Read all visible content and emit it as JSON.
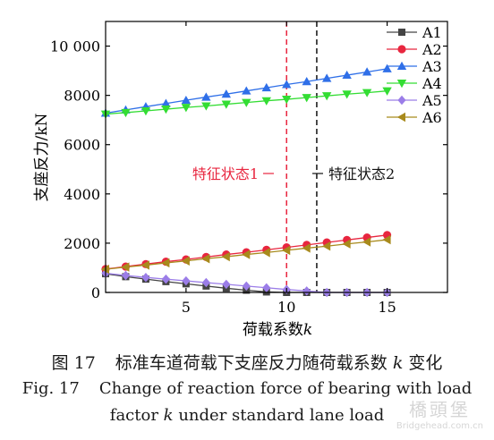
{
  "chart_data": {
    "type": "line",
    "x": [
      1,
      2,
      3,
      4,
      5,
      6,
      7,
      8,
      9,
      10,
      11,
      12,
      13,
      14,
      15
    ],
    "xlim": [
      1,
      18
    ],
    "ylim": [
      0,
      11000
    ],
    "x_ticks": [
      5,
      10,
      15
    ],
    "y_ticks": [
      0,
      2000,
      4000,
      6000,
      8000,
      10000
    ],
    "y_tick_labels": [
      "0",
      "2000",
      "4000",
      "6000",
      "8000",
      "10 000"
    ],
    "x_tick_labels": [
      "5",
      "10",
      "15"
    ],
    "xlabel": "荷载系数",
    "xlabel_var": "k",
    "ylabel": "支座反力/kN",
    "grid": false,
    "legend_position": "top-right",
    "series": [
      {
        "name": "A1",
        "color": "#444444",
        "marker": "square",
        "values": [
          760,
          640,
          540,
          440,
          350,
          260,
          170,
          90,
          20,
          0,
          0,
          0,
          0,
          0,
          0
        ]
      },
      {
        "name": "A2",
        "color": "#e8263f",
        "marker": "circle",
        "values": [
          950,
          1050,
          1150,
          1250,
          1340,
          1440,
          1540,
          1630,
          1730,
          1830,
          1930,
          2030,
          2130,
          2230,
          2330
        ]
      },
      {
        "name": "A3",
        "color": "#2f6fe8",
        "marker": "triangle-up",
        "values": [
          7280,
          7410,
          7540,
          7670,
          7800,
          7930,
          8050,
          8180,
          8310,
          8440,
          8560,
          8690,
          8820,
          8950,
          9080
        ]
      },
      {
        "name": "A4",
        "color": "#33dd33",
        "marker": "triangle-down",
        "values": [
          7240,
          7300,
          7370,
          7440,
          7510,
          7570,
          7640,
          7710,
          7780,
          7840,
          7910,
          7980,
          8050,
          8110,
          8180
        ]
      },
      {
        "name": "A5",
        "color": "#9b7de8",
        "marker": "diamond",
        "values": [
          780,
          690,
          610,
          540,
          470,
          400,
          330,
          260,
          190,
          120,
          60,
          0,
          0,
          0,
          0
        ]
      },
      {
        "name": "A6",
        "color": "#a88a1c",
        "marker": "triangle-left",
        "values": [
          940,
          1030,
          1110,
          1200,
          1280,
          1370,
          1450,
          1540,
          1620,
          1710,
          1800,
          1880,
          1970,
          2050,
          2140
        ]
      }
    ],
    "reference_lines": [
      {
        "x": 10,
        "color": "#e8263f",
        "style": "dashed",
        "label": "特征状态1"
      },
      {
        "x": 11.5,
        "color": "#111111",
        "style": "dashed",
        "label": "特征状态2"
      }
    ]
  },
  "caption": {
    "cn_num": "图 17",
    "cn_pre": "标准车道荷载下支座反力随荷载系数",
    "cn_var": "k",
    "cn_post": "变化",
    "en_num": "Fig. 17",
    "en_line1": "Change of reaction force of bearing with load",
    "en_pre": "factor",
    "en_var": "k",
    "en_post": "under standard lane load"
  },
  "watermark": {
    "cn": "橋頭堡",
    "en": "Bridgehead.com.cn"
  }
}
